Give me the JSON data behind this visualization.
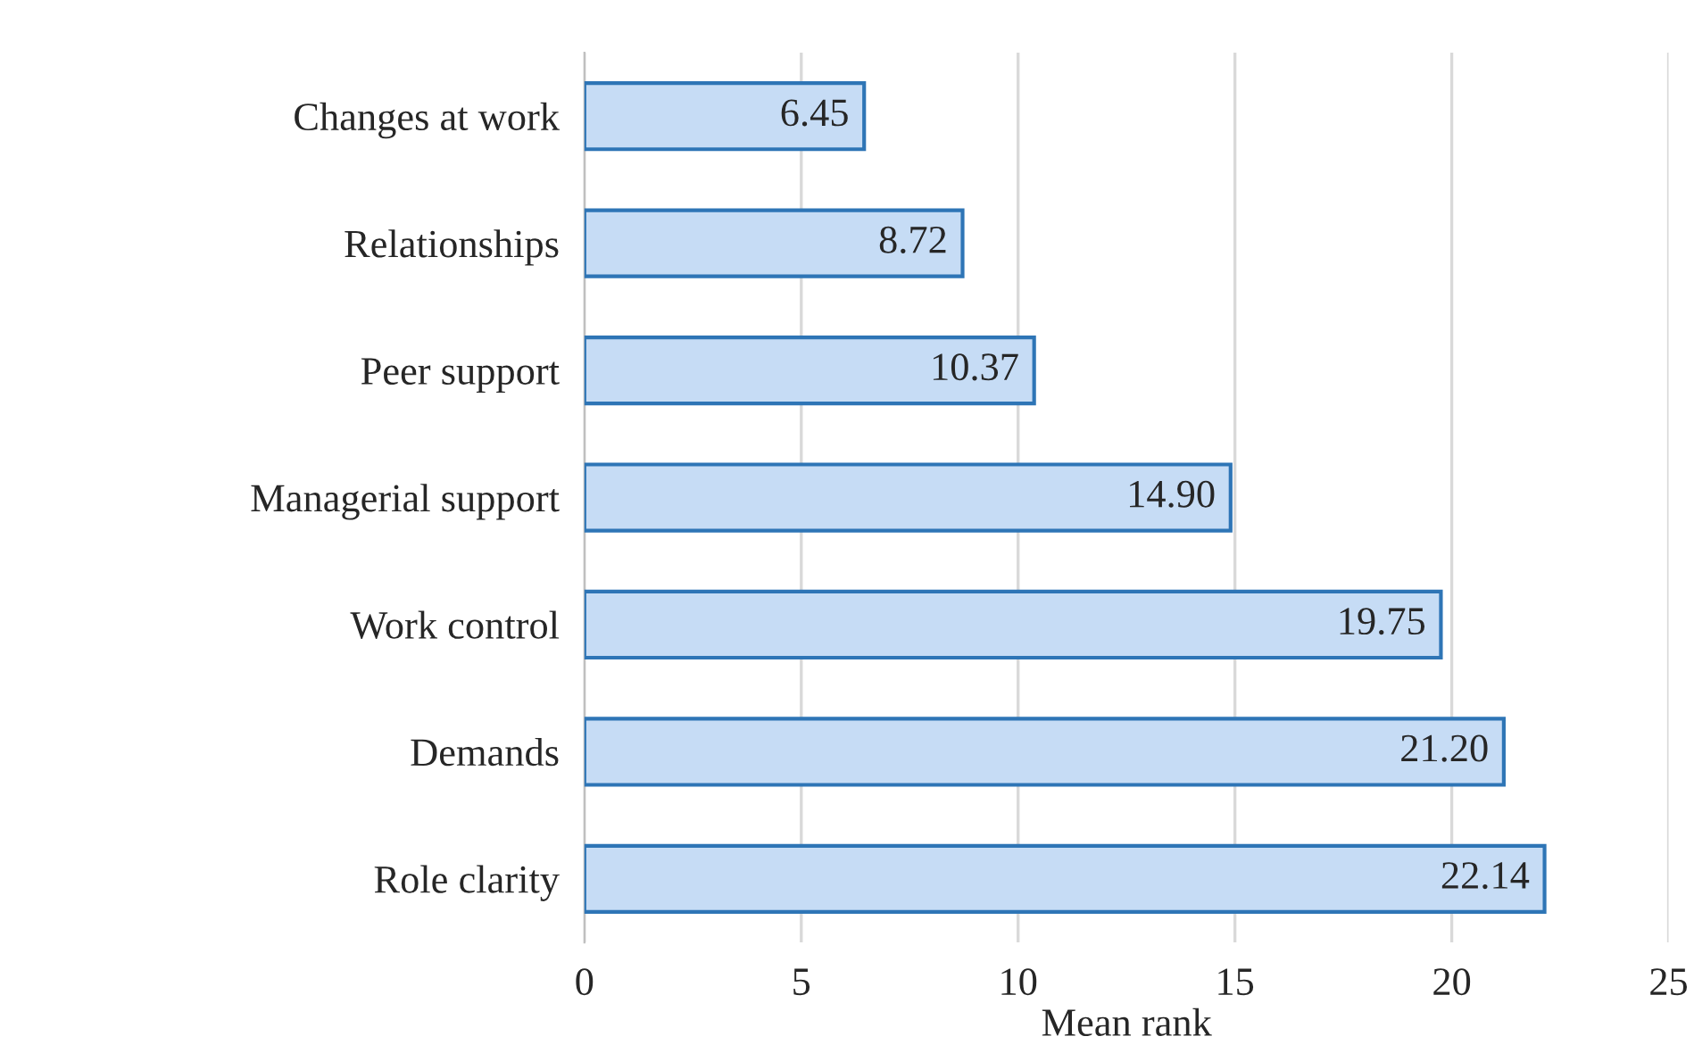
{
  "chart_data": {
    "type": "bar",
    "orientation": "horizontal",
    "xlabel": "Mean rank",
    "categories": [
      "Changes at work",
      "Relationships",
      "Peer support",
      "Managerial support",
      "Work control",
      "Demands",
      "Role clarity"
    ],
    "values": [
      6.45,
      8.72,
      10.37,
      14.9,
      19.75,
      21.2,
      22.14
    ],
    "value_labels": [
      "6.45",
      "8.72",
      "10.37",
      "14.90",
      "19.75",
      "21.20",
      "22.14"
    ],
    "color": "#c6dcf5",
    "xlim": [
      0,
      25
    ],
    "xticks": [
      0,
      5,
      10,
      15,
      20,
      25
    ],
    "grid": "x"
  }
}
